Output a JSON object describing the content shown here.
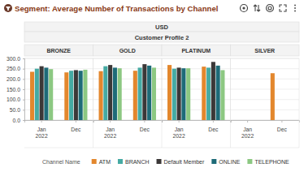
{
  "chart_data": {
    "type": "bar",
    "title": "Segment: Average Number of Transactions by Channel",
    "headers": [
      "USD",
      "Customer Profile 2"
    ],
    "facets": [
      "BRONZE",
      "GOLD",
      "PLATINUM",
      "SILVER"
    ],
    "categories": [
      "Jan 2022",
      "Dec"
    ],
    "legend_title": "Channel Name",
    "legend": "bottom",
    "grid": true,
    "ylim": [
      0,
      300
    ],
    "yticks": [
      {
        "value": 0,
        "label": "0.0"
      },
      {
        "value": 50,
        "label": "50.0"
      },
      {
        "value": 100,
        "label": "100.0"
      },
      {
        "value": 150,
        "label": "150.0"
      },
      {
        "value": 200,
        "label": "200.0"
      },
      {
        "value": 250,
        "label": "250.0"
      },
      {
        "value": 300,
        "label": "300.0"
      }
    ],
    "series": [
      {
        "name": "ATM",
        "color": "#e3872d",
        "values": [
          [
            235,
            232
          ],
          [
            238,
            240
          ],
          [
            268,
            260
          ],
          [
            null,
            228
          ]
        ]
      },
      {
        "name": "BRANCH",
        "color": "#45aaa3",
        "values": [
          [
            250,
            240
          ],
          [
            262,
            255
          ],
          [
            250,
            255
          ],
          [
            null,
            null
          ]
        ]
      },
      {
        "name": "Default Member",
        "color": "#3b3838",
        "values": [
          [
            262,
            243
          ],
          [
            268,
            272
          ],
          [
            255,
            283
          ],
          [
            null,
            null
          ]
        ]
      },
      {
        "name": "ONLINE",
        "color": "#1e6b78",
        "values": [
          [
            255,
            240
          ],
          [
            255,
            265
          ],
          [
            252,
            265
          ],
          [
            null,
            null
          ]
        ]
      },
      {
        "name": "TELEPHONE",
        "color": "#8cc882",
        "values": [
          [
            248,
            245
          ],
          [
            252,
            255
          ],
          [
            252,
            243
          ],
          [
            null,
            null
          ]
        ]
      }
    ]
  }
}
